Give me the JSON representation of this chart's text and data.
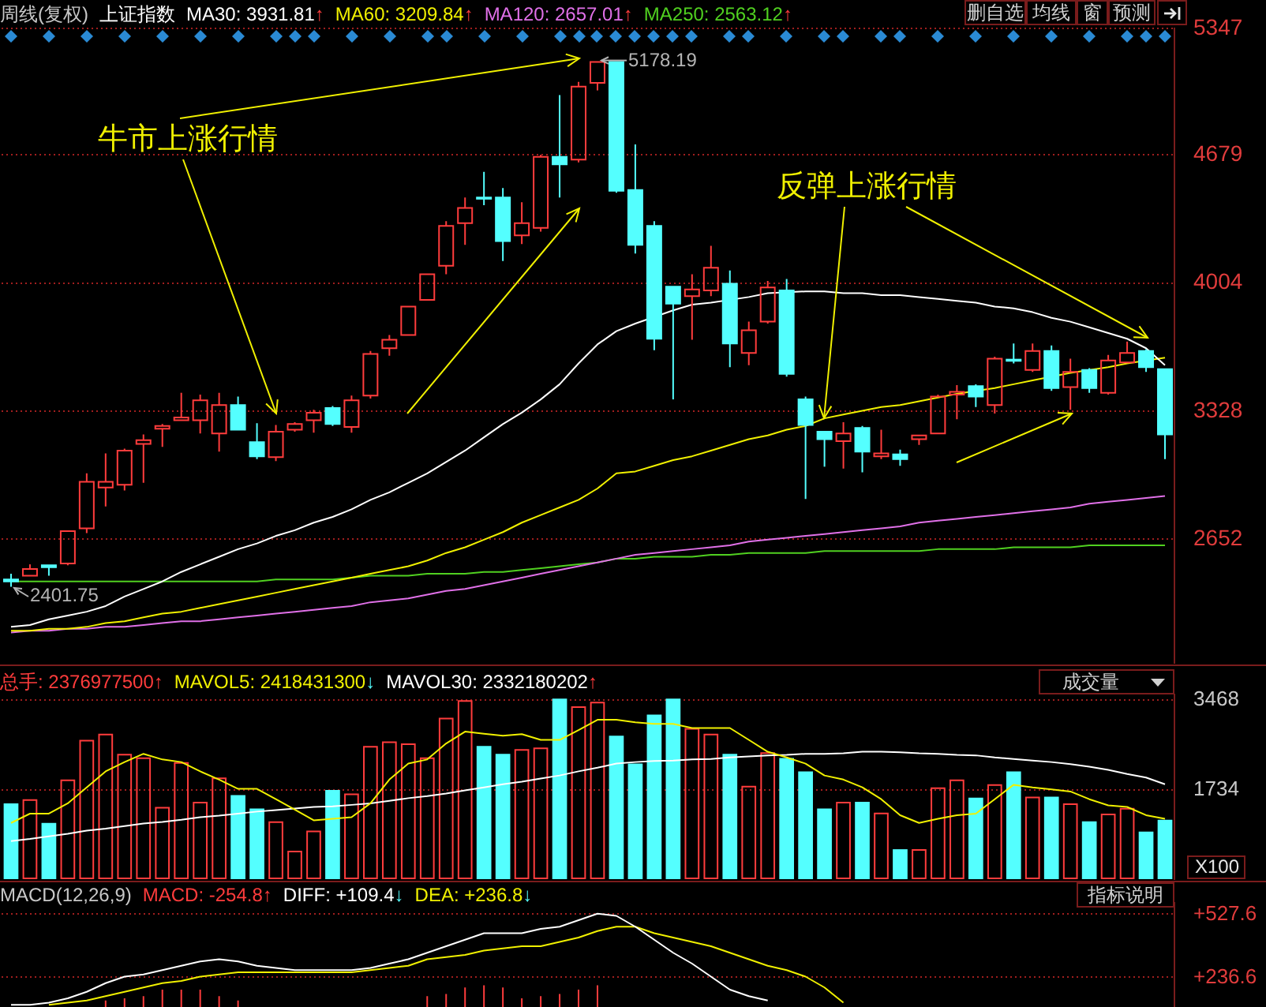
{
  "chart_data": [
    {
      "type": "candlestick",
      "title": "上证指数",
      "subtitle": "周线(复权)",
      "categories": [
        null,
        null,
        null,
        null,
        null,
        null,
        null,
        null,
        null,
        null,
        null,
        null,
        null,
        null,
        null,
        null,
        null,
        null,
        null,
        null,
        null,
        null,
        null,
        null,
        null,
        null,
        null,
        null,
        null,
        null,
        null,
        null,
        null,
        null,
        null,
        null,
        null,
        null,
        null,
        null,
        null,
        null,
        null,
        null,
        null,
        null,
        null,
        null,
        null,
        null,
        null,
        null,
        null,
        null,
        null,
        null,
        null,
        null,
        null,
        null,
        null,
        null
      ],
      "ohlc": [
        [
          2440,
          2470,
          2401.75,
          2430
        ],
        [
          2460,
          2520,
          2455,
          2495
        ],
        [
          2515,
          2520,
          2460,
          2505
        ],
        [
          2525,
          2700,
          2515,
          2695
        ],
        [
          2710,
          3000,
          2685,
          2955
        ],
        [
          2925,
          3105,
          2825,
          2955
        ],
        [
          2940,
          3130,
          2910,
          3120
        ],
        [
          3155,
          3205,
          2950,
          3175
        ],
        [
          3235,
          3260,
          3140,
          3250
        ],
        [
          3280,
          3425,
          3280,
          3295
        ],
        [
          3280,
          3415,
          3210,
          3385
        ],
        [
          3210,
          3425,
          3115,
          3360
        ],
        [
          3360,
          3405,
          3230,
          3230
        ],
        [
          3165,
          3265,
          3075,
          3090
        ],
        [
          3085,
          3255,
          3065,
          3220
        ],
        [
          3230,
          3270,
          3220,
          3260
        ],
        [
          3280,
          3335,
          3215,
          3320
        ],
        [
          3345,
          3355,
          3250,
          3260
        ],
        [
          3245,
          3410,
          3215,
          3385
        ],
        [
          3410,
          3645,
          3395,
          3630
        ],
        [
          3660,
          3730,
          3620,
          3705
        ],
        [
          3730,
          3885,
          3725,
          3880
        ],
        [
          3915,
          4055,
          3910,
          4050
        ],
        [
          4095,
          4330,
          4050,
          4305
        ],
        [
          4320,
          4455,
          4205,
          4400
        ],
        [
          4455,
          4590,
          4415,
          4450
        ],
        [
          4455,
          4505,
          4120,
          4225
        ],
        [
          4255,
          4430,
          4210,
          4320
        ],
        [
          4295,
          4680,
          4275,
          4670
        ],
        [
          4670,
          4995,
          4455,
          4630
        ],
        [
          4655,
          5065,
          4640,
          5040
        ],
        [
          5060,
          5178.19,
          5020,
          5170
        ],
        [
          5170,
          5175,
          4480,
          4490
        ],
        [
          4495,
          4735,
          4160,
          4205
        ],
        [
          4305,
          4330,
          3650,
          3710
        ],
        [
          3985,
          3985,
          3390,
          3895
        ],
        [
          3935,
          4050,
          3705,
          3970
        ],
        [
          3965,
          4200,
          3935,
          4085
        ],
        [
          4000,
          4070,
          3560,
          3685
        ],
        [
          3635,
          3800,
          3570,
          3755
        ],
        [
          3800,
          4015,
          3790,
          3980
        ],
        [
          3965,
          4025,
          3510,
          3525
        ],
        [
          3390,
          3405,
          2865,
          3255
        ],
        [
          3220,
          3220,
          3035,
          3180
        ],
        [
          3170,
          3270,
          3025,
          3210
        ],
        [
          3240,
          3250,
          3005,
          3115
        ],
        [
          3090,
          3230,
          3075,
          3105
        ],
        [
          3100,
          3125,
          3040,
          3075
        ],
        [
          3180,
          3200,
          3150,
          3200
        ],
        [
          3210,
          3415,
          3205,
          3405
        ],
        [
          3415,
          3465,
          3285,
          3430
        ],
        [
          3460,
          3470,
          3350,
          3405
        ],
        [
          3360,
          3615,
          3315,
          3605
        ],
        [
          3600,
          3685,
          3580,
          3595
        ],
        [
          3545,
          3685,
          3535,
          3645
        ],
        [
          3645,
          3675,
          3435,
          3450
        ],
        [
          3455,
          3605,
          3335,
          3535
        ],
        [
          3545,
          3555,
          3425,
          3450
        ],
        [
          3425,
          3625,
          3415,
          3595
        ],
        [
          3585,
          3695,
          3580,
          3635
        ],
        [
          3645,
          3655,
          3535,
          3560
        ],
        [
          3550,
          3550,
          3075,
          3205
        ]
      ],
      "colors": [
        "#54ffff",
        "#ff3c3c",
        "#54ffff",
        "#ff3c3c",
        "#ff3c3c",
        "#ff3c3c",
        "#ff3c3c",
        "#ff3c3c",
        "#ff3c3c",
        "#ff3c3c",
        "#ff3c3c",
        "#ff3c3c",
        "#54ffff",
        "#54ffff",
        "#ff3c3c",
        "#ff3c3c",
        "#ff3c3c",
        "#54ffff",
        "#ff3c3c",
        "#ff3c3c",
        "#ff3c3c",
        "#ff3c3c",
        "#ff3c3c",
        "#ff3c3c",
        "#ff3c3c",
        "#54ffff",
        "#54ffff",
        "#ff3c3c",
        "#ff3c3c",
        "#54ffff",
        "#ff3c3c",
        "#ff3c3c",
        "#54ffff",
        "#54ffff",
        "#54ffff",
        "#54ffff",
        "#ff3c3c",
        "#ff3c3c",
        "#54ffff",
        "#ff3c3c",
        "#ff3c3c",
        "#54ffff",
        "#54ffff",
        "#54ffff",
        "#ff3c3c",
        "#54ffff",
        "#ff3c3c",
        "#54ffff",
        "#ff3c3c",
        "#ff3c3c",
        "#ff3c3c",
        "#54ffff",
        "#ff3c3c",
        "#54ffff",
        "#ff3c3c",
        "#54ffff",
        "#ff3c3c",
        "#54ffff",
        "#ff3c3c",
        "#ff3c3c",
        "#54ffff",
        "#54ffff"
      ],
      "series": [
        {
          "type": "line",
          "name": "MA30: 3931.81↑",
          "color": "#ffffff",
          "values": [
            2190,
            2200,
            2230,
            2250,
            2270,
            2300,
            2350,
            2390,
            2430,
            2480,
            2520,
            2560,
            2600,
            2630,
            2670,
            2700,
            2740,
            2770,
            2810,
            2860,
            2900,
            2950,
            3000,
            3060,
            3120,
            3190,
            3260,
            3320,
            3390,
            3470,
            3580,
            3680,
            3750,
            3790,
            null,
            3860,
            3890,
            3900,
            null,
            3930,
            3950,
            null,
            3960,
            3960,
            3950,
            3950,
            3940,
            3940,
            3930,
            3920,
            3910,
            3900,
            3880,
            3870,
            3850,
            3820,
            3800,
            3770,
            3740,
            3710,
            3660,
            3570
          ]
        },
        {
          "type": "line",
          "name": "MA60: 3209.84↑",
          "color": "#f0f000",
          "values": [
            2170,
            2170,
            2180,
            2180,
            2190,
            2210,
            2220,
            2240,
            2260,
            2270,
            2290,
            2310,
            2330,
            2350,
            2370,
            2390,
            2410,
            2430,
            2450,
            2470,
            2490,
            2510,
            2540,
            2580,
            2610,
            2650,
            2690,
            2740,
            2780,
            2820,
            2860,
            2920,
            3000,
            3010,
            3040,
            3070,
            3090,
            3120,
            3150,
            3180,
            3200,
            3230,
            3250,
            3290,
            3310,
            3330,
            3350,
            3360,
            3380,
            3400,
            3420,
            null,
            3450,
            3470,
            3490,
            null,
            3530,
            null,
            3560,
            3580,
            null,
            3610
          ]
        },
        {
          "type": "line",
          "name": "MA120: 2657.01↑",
          "color": "#e070e8",
          "values": [
            2160,
            2170,
            2170,
            2180,
            2180,
            2190,
            2190,
            2200,
            2210,
            2220,
            2220,
            2230,
            2240,
            2250,
            2260,
            2270,
            2280,
            2290,
            2300,
            2320,
            2330,
            2340,
            2360,
            2380,
            2390,
            2410,
            2430,
            2450,
            2470,
            2490,
            2510,
            2530,
            2550,
            2570,
            2580,
            2590,
            2600,
            2610,
            2620,
            2640,
            2650,
            2660,
            2670,
            2680,
            2690,
            2700,
            2710,
            2720,
            2740,
            2750,
            2760,
            2770,
            2780,
            2790,
            2800,
            2810,
            2820,
            2840,
            2850,
            2860,
            2870,
            2880
          ]
        },
        {
          "type": "line",
          "name": "MA250: 2563.12↑",
          "color": "#50d020",
          "values": [
            2430,
            2430,
            2430,
            2430,
            2430,
            2430,
            2430,
            2430,
            2430,
            2430,
            2430,
            2430,
            2430,
            2430,
            2440,
            2440,
            2440,
            2440,
            2450,
            2460,
            2460,
            2460,
            2470,
            2470,
            2470,
            2480,
            2480,
            2490,
            2500,
            2510,
            2520,
            2530,
            2550,
            2550,
            2560,
            2560,
            2560,
            2570,
            2570,
            2580,
            2580,
            2580,
            2580,
            2590,
            2590,
            2590,
            2590,
            2590,
            2590,
            2600,
            2600,
            2600,
            2600,
            2610,
            2610,
            2610,
            2610,
            2620,
            2620,
            2620,
            2620,
            2620
          ]
        }
      ],
      "ylim": [
        2000,
        5347
      ],
      "yticks": [
        2652,
        3328,
        4004,
        4679,
        5347
      ],
      "grid": "y",
      "legend": "top left",
      "tick_labels": "y",
      "annotations": [
        "牛市上涨行情",
        "反弹上涨行情",
        "5178.19",
        "2401.75",
        "删自选",
        "均线",
        "窗",
        "预测"
      ]
    },
    {
      "type": "bar",
      "categories": [
        null,
        null,
        null,
        null,
        null,
        null,
        null,
        null,
        null,
        null,
        null,
        null,
        null,
        null,
        null,
        null,
        null,
        null,
        null,
        null,
        null,
        null,
        null,
        null,
        null,
        null,
        null,
        null,
        null,
        null,
        null,
        null,
        null,
        null,
        null,
        null,
        null,
        null,
        null,
        null,
        null,
        null,
        null,
        null,
        null,
        null,
        null,
        null,
        null,
        null,
        null,
        null,
        null,
        null,
        null,
        null,
        null,
        null,
        null,
        null,
        null,
        null
      ],
      "series": [
        {
          "name": "总手: 2376977500↑",
          "color": "#ff3c3c",
          "colors": [
            "#54ffff",
            "#ff3c3c",
            "#54ffff",
            "#ff3c3c",
            "#ff3c3c",
            "#ff3c3c",
            "#ff3c3c",
            "#ff3c3c",
            "#ff3c3c",
            "#ff3c3c",
            "#ff3c3c",
            "#ff3c3c",
            "#54ffff",
            "#54ffff",
            "#ff3c3c",
            "#ff3c3c",
            "#ff3c3c",
            "#54ffff",
            "#ff3c3c",
            "#ff3c3c",
            "#ff3c3c",
            "#ff3c3c",
            "#ff3c3c",
            "#ff3c3c",
            "#ff3c3c",
            "#54ffff",
            "#54ffff",
            "#ff3c3c",
            "#ff3c3c",
            "#54ffff",
            "#ff3c3c",
            "#ff3c3c",
            "#54ffff",
            "#54ffff",
            "#54ffff",
            "#54ffff",
            "#ff3c3c",
            "#ff3c3c",
            "#54ffff",
            "#ff3c3c",
            "#ff3c3c",
            "#54ffff",
            "#54ffff",
            "#54ffff",
            "#ff3c3c",
            "#54ffff",
            "#ff3c3c",
            "#54ffff",
            "#ff3c3c",
            "#ff3c3c",
            "#ff3c3c",
            "#54ffff",
            "#ff3c3c",
            "#54ffff",
            "#ff3c3c",
            "#54ffff",
            "#ff3c3c",
            "#54ffff",
            "#ff3c3c",
            "#ff3c3c",
            "#54ffff",
            "#54ffff"
          ],
          "values": [
            1470,
            1550,
            1090,
            1930,
            2700,
            2820,
            2430,
            2360,
            1400,
            2270,
            1500,
            1970,
            1630,
            1370,
            1120,
            550,
            940,
            1730,
            1660,
            2580,
            2670,
            2630,
            2360,
            3130,
            3470,
            2580,
            2430,
            2520,
            2550,
            3500,
            3350,
            3440,
            2780,
            2240,
            3190,
            3500,
            2930,
            2820,
            2430,
            1810,
            2460,
            2350,
            2090,
            1370,
            1500,
            1500,
            1290,
            580,
            580,
            1780,
            1930,
            1580,
            1840,
            2090,
            1600,
            1600,
            1470,
            1120,
            1270,
            1380,
            920,
            1150
          ]
        },
        {
          "type": "line",
          "name": "MAVOL5: 2418431300↓",
          "color": "#f0f000",
          "values": [
            1090,
            1270,
            1270,
            1470,
            1780,
            2090,
            2270,
            2430,
            2320,
            2270,
            2090,
            1930,
            1750,
            1750,
            1550,
            1350,
            1140,
            1170,
            1200,
            1470,
            1930,
            2240,
            2320,
            2630,
            2860,
            2820,
            2780,
            2810,
            2700,
            2700,
            2890,
            3090,
            3090,
            3040,
            3010,
            3010,
            2930,
            2930,
            2930,
            2700,
            2470,
            2360,
            2240,
            2010,
            1930,
            1780,
            1550,
            1240,
            1090,
            1170,
            1240,
            1270,
            1550,
            1830,
            1780,
            1740,
            1700,
            1550,
            1430,
            1400,
            1240,
            1170
          ]
        },
        {
          "type": "line",
          "name": "MAVOL30: 2332180202↑",
          "color": "#ffffff",
          "values": [
            740,
            780,
            830,
            880,
            940,
            980,
            1030,
            1080,
            1110,
            1150,
            1200,
            1230,
            1270,
            1310,
            1340,
            1370,
            1400,
            1410,
            1440,
            1470,
            1520,
            1570,
            1610,
            1660,
            1720,
            1780,
            1840,
            1890,
            1950,
            2010,
            2090,
            2160,
            2240,
            2270,
            2290,
            2300,
            2320,
            2330,
            2360,
            2380,
            2400,
            2410,
            2430,
            2430,
            2440,
            2470,
            2470,
            2460,
            2440,
            2430,
            2410,
            2400,
            2360,
            2330,
            2300,
            2270,
            2230,
            2180,
            2120,
            2040,
            1970,
            1840
          ]
        }
      ],
      "ylim": [
        0,
        3580
      ],
      "yticks": [
        1734,
        3468
      ],
      "ylabel": "X100",
      "grid": "y",
      "legend": "top left",
      "tick_labels": "y",
      "annotations": [
        "成交量"
      ]
    },
    {
      "type": "bar",
      "title": "MACD(12,26,9)",
      "categories": [
        null,
        null,
        null,
        null,
        null,
        null,
        null,
        null,
        null,
        null,
        null,
        null,
        null,
        null,
        null,
        null,
        null,
        null,
        null,
        null,
        null,
        null,
        null,
        null,
        null,
        null,
        null,
        null,
        null,
        null,
        null,
        null,
        null,
        null,
        null,
        null,
        null,
        null,
        null,
        null,
        null,
        null,
        null,
        null,
        null,
        null,
        null,
        null,
        null,
        null,
        null,
        null,
        null,
        null,
        null,
        null,
        null,
        null,
        null,
        null,
        null,
        null
      ],
      "series": [
        {
          "name": "MACD: -254.8↑",
          "color": "#ff3c3c",
          "values": [
            null,
            null,
            null,
            null,
            null,
            130,
            140,
            150,
            180,
            180,
            180,
            150,
            130,
            null,
            null,
            null,
            null,
            null,
            null,
            null,
            null,
            null,
            150,
            160,
            190,
            200,
            190,
            140,
            150,
            160,
            180,
            200,
            null,
            null,
            null,
            null,
            null,
            null,
            null,
            null,
            null,
            null,
            null,
            null,
            null,
            null,
            null,
            null,
            null,
            null,
            null,
            null,
            null,
            null,
            null,
            null,
            null,
            null,
            null,
            null,
            null,
            null
          ]
        },
        {
          "type": "line",
          "name": "DIFF: +109.4↓",
          "color": "#ffffff",
          "values": [
            110,
            110,
            120,
            140,
            170,
            210,
            240,
            250,
            270,
            290,
            310,
            320,
            310,
            290,
            280,
            270,
            270,
            270,
            270,
            280,
            300,
            320,
            350,
            380,
            410,
            440,
            440,
            440,
            460,
            470,
            500,
            530,
            520,
            470,
            410,
            350,
            300,
            240,
            180,
            150,
            130,
            null,
            null,
            null,
            null,
            null,
            null,
            null,
            null,
            null,
            null,
            null,
            null,
            null,
            null,
            null,
            null,
            null,
            null,
            null,
            null,
            null
          ]
        },
        {
          "type": "line",
          "name": "DEA: +236.8↓",
          "color": "#f0f000",
          "values": [
            null,
            null,
            110,
            120,
            130,
            150,
            170,
            190,
            210,
            220,
            240,
            250,
            260,
            260,
            260,
            260,
            260,
            260,
            260,
            270,
            280,
            290,
            320,
            330,
            340,
            360,
            370,
            380,
            380,
            400,
            420,
            450,
            470,
            470,
            440,
            420,
            400,
            380,
            350,
            320,
            290,
            270,
            240,
            190,
            120,
            null,
            null,
            null,
            null,
            null,
            null,
            null,
            null,
            null,
            null,
            null,
            null,
            null,
            null,
            null,
            null,
            null
          ]
        }
      ],
      "ylim": [
        100,
        580
      ],
      "yticks": [
        {
          "value": 236.6,
          "label": "+236.6"
        },
        {
          "value": 527.6,
          "label": "+527.6"
        }
      ],
      "grid": "y",
      "legend": "top left",
      "tick_labels": "y",
      "annotations": [
        "指标说明"
      ]
    }
  ]
}
